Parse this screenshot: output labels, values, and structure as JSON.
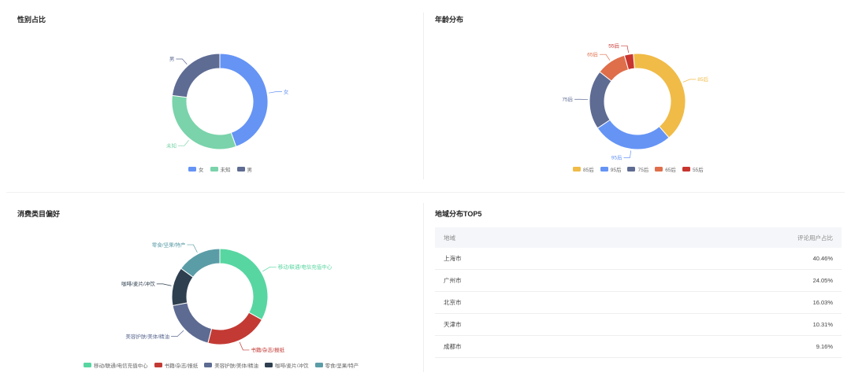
{
  "colors": {
    "blue": "#6594f5",
    "green": "#7ad3aa",
    "slate": "#5e6b93",
    "gold": "#f0bb47",
    "orange": "#df6e4b",
    "red": "#c8352f",
    "teal_green": "#57d6a1",
    "deep_red": "#c33a34",
    "indigo_gray": "#5d6b92",
    "dark_navy": "#2e3f4f",
    "teal": "#5b9da7"
  },
  "chart_data": [
    {
      "type": "pie",
      "title": "性别占比",
      "donut": true,
      "categories": [
        "女",
        "未知",
        "男"
      ],
      "values": [
        44.5,
        32.5,
        23.0
      ],
      "legend_position": "bottom"
    },
    {
      "type": "pie",
      "title": "年龄分布",
      "donut": true,
      "categories": [
        "85后",
        "95后",
        "75后",
        "65后",
        "55后"
      ],
      "values": [
        40,
        27,
        20,
        10,
        3
      ],
      "legend_position": "bottom"
    },
    {
      "type": "pie",
      "title": "消费类目偏好",
      "donut": true,
      "categories": [
        "移动/联通/电信充值中心",
        "书籍/杂志/报纸",
        "美容护肤/美体/精油",
        "咖啡/麦片/冲饮",
        "零食/坚果/特产"
      ],
      "values": [
        33,
        21,
        18,
        13,
        15
      ],
      "legend_position": "bottom"
    }
  ],
  "region": {
    "title": "地域分布TOP5",
    "headers": [
      "地域",
      "评论用户占比"
    ],
    "rows": [
      {
        "name": "上海市",
        "pct": "40.46%"
      },
      {
        "name": "广州市",
        "pct": "24.05%"
      },
      {
        "name": "北京市",
        "pct": "16.03%"
      },
      {
        "name": "天津市",
        "pct": "10.31%"
      },
      {
        "name": "成都市",
        "pct": "9.16%"
      }
    ]
  }
}
